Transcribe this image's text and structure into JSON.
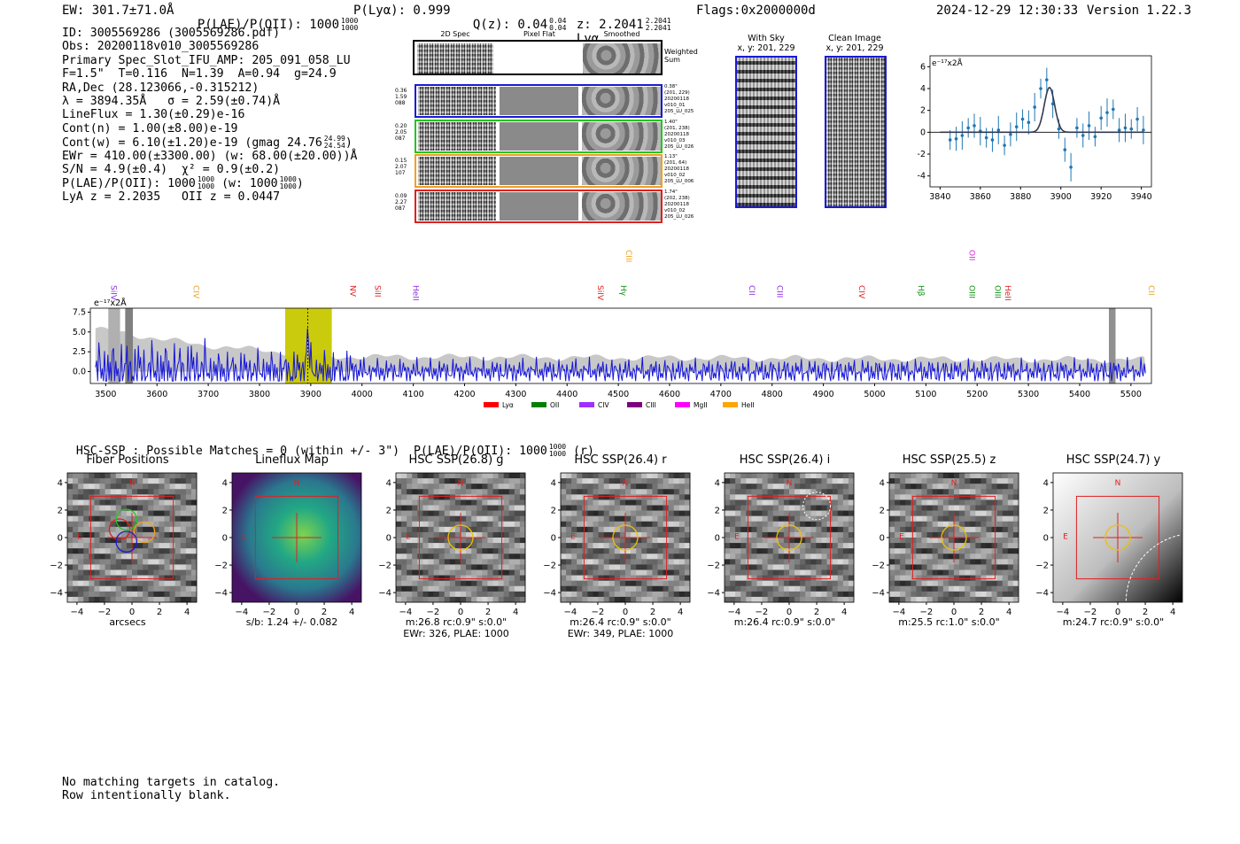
{
  "header": {
    "ew": "EW: 301.7±71.0Å",
    "plae_label": "P(LAE)/P(OII): 1000",
    "plae_hi": "1000",
    "plae_lo": "1000",
    "plya": "P(Lyα): 0.999",
    "qz_label": "Q(z): 0.04",
    "qz_hi": "0.04",
    "qz_lo": "0.04",
    "z_label": "z: 2.2041",
    "z_hi": "2.2041",
    "z_lo": "2.2041",
    "line": "Lyα",
    "flags": "Flags:0x2000000d",
    "datetime": "2024-12-29 12:30:33",
    "version": "Version 1.22.3"
  },
  "info": {
    "id": "ID: 3005569286 (3005569286.pdf)",
    "obs": "Obs: 20200118v010_3005569286",
    "primary": "Primary Spec_Slot_IFU_AMP: 205_091_058_LU",
    "params": "F=1.5\"  T=0.116  N=1.39  A=0.94  g=24.9",
    "radec": "RA,Dec (28.123066,-0.315212)",
    "lambda": "λ = 3894.35Å   σ = 2.59(±0.74)Å",
    "lineflux": "LineFlux = 1.30(±0.29)e-16",
    "cont_n": "Cont(n) = 1.00(±8.00)e-19",
    "cont_w": "Cont(w) = 6.10(±1.20)e-19 (gmag 24.76",
    "gmag_hi": "24.99",
    "gmag_lo": "24.54",
    "ewr": "EWr = 410.00(±3300.00) (w: 68.00(±20.00))Å",
    "sn": "S/N = 4.9(±0.4)  χ² = 0.9(±0.2)",
    "plae": "P(LAE)/P(OII): 1000",
    "plae_hi": "1000",
    "plae_lo": "1000",
    "plae_w": "(w: 1000",
    "plae_w_hi": "1000",
    "plae_w_lo": "1000",
    "lya_z": "LyA z = 2.2035   OII z = 0.0447"
  },
  "cutouts": {
    "col_titles": [
      "2D Spec",
      "Pixel Flat",
      "Smoothed"
    ],
    "weighted_sum": "Weighted Sum",
    "rows": [
      {
        "left": [
          "0.36",
          "1.59",
          "088"
        ],
        "right": [
          "0.38\"",
          "(201, 229)",
          "20200118",
          "v010_01",
          "205_LU_025"
        ],
        "color": "#1a1ad6"
      },
      {
        "left": [
          "0.20",
          "2.05",
          "087"
        ],
        "right": [
          "1.40\"",
          "(201, 238)",
          "20200118",
          "v010_03",
          "205_LU_026"
        ],
        "color": "#22c522"
      },
      {
        "left": [
          "0.15",
          "2.07",
          "107"
        ],
        "right": [
          "1.13\"",
          "(201, 64)",
          "20200118",
          "v010_02",
          "205_LU_006"
        ],
        "color": "#f0a020"
      },
      {
        "left": [
          "0.09",
          "2.27",
          "087"
        ],
        "right": [
          "1.74\"",
          "(202, 238)",
          "20200118",
          "v010_02",
          "205_LU_026"
        ],
        "color": "#e02020"
      }
    ],
    "with_sky": "With Sky",
    "with_sky_xy": "x, y: 201, 229",
    "clean": "Clean Image",
    "clean_xy": "x, y: 201, 229"
  },
  "zoom_chart": {
    "unit": "e⁻¹⁷x2Å",
    "x_ticks": [
      "3840",
      "3860",
      "3880",
      "3900",
      "3920",
      "3940"
    ],
    "y_ticks": [
      "6",
      "4",
      "2",
      "0",
      "-2",
      "-4"
    ]
  },
  "chart_data": [
    {
      "type": "line",
      "title": "",
      "ylabel": "e⁻¹⁷x2Å",
      "x": [
        3845,
        3848,
        3851,
        3854,
        3857,
        3860,
        3863,
        3866,
        3869,
        3872,
        3875,
        3878,
        3881,
        3884,
        3887,
        3890,
        3893,
        3896,
        3899,
        3902,
        3905,
        3908,
        3911,
        3914,
        3917,
        3920,
        3923,
        3926,
        3929,
        3932,
        3935,
        3938,
        3941
      ],
      "series": [
        {
          "name": "data",
          "values": [
            -0.7,
            -0.6,
            -0.3,
            0.4,
            0.6,
            0.1,
            -0.5,
            -0.7,
            0.2,
            -1.2,
            -0.2,
            0.5,
            1.2,
            0.9,
            2.3,
            4.0,
            4.8,
            2.6,
            0.3,
            -1.6,
            -3.2,
            0.4,
            -0.3,
            0.6,
            -0.4,
            1.3,
            1.8,
            2.1,
            0.2,
            0.4,
            0.3,
            1.2,
            0.2
          ]
        },
        {
          "name": "fit",
          "values": [
            0,
            0,
            0,
            0,
            0,
            0,
            0,
            0,
            0,
            0,
            0,
            0,
            0,
            0.05,
            0.6,
            2.6,
            4.0,
            2.5,
            0.5,
            0.05,
            0,
            0,
            0,
            0,
            0,
            0,
            0,
            0,
            0,
            0,
            0,
            0,
            0
          ]
        }
      ],
      "xlim": [
        3835,
        3945
      ],
      "ylim": [
        -5,
        7
      ]
    },
    {
      "type": "line",
      "title": "",
      "ylabel": "e⁻¹⁷x2Å",
      "categories": [
        "3500",
        "3600",
        "3700",
        "3800",
        "3900",
        "4000",
        "4100",
        "4200",
        "4300",
        "4400",
        "4500",
        "4600",
        "4700",
        "4800",
        "4900",
        "5000",
        "5100",
        "5200",
        "5300",
        "5400",
        "5500"
      ],
      "y_ticks": [
        "7.5",
        "5.0",
        "2.5",
        "0.0"
      ],
      "xlim": [
        3470,
        5540
      ],
      "ylim": [
        -1.5,
        8
      ]
    }
  ],
  "lines": [
    {
      "label": "SiIV",
      "color": "#8a2be2",
      "wl": 3505,
      "row": 0
    },
    {
      "label": "CIV",
      "color": "#f0a020",
      "wl": 3666,
      "row": 0
    },
    {
      "label": "NV",
      "color": "#e02020",
      "wl": 3972,
      "row": 0
    },
    {
      "label": "SiII",
      "color": "#e02020",
      "wl": 4020,
      "row": 0
    },
    {
      "label": "HeII",
      "color": "#8a2be2",
      "wl": 4095,
      "row": 0
    },
    {
      "label": "SiIV",
      "color": "#e02020",
      "wl": 4455,
      "row": 0
    },
    {
      "label": "CIII",
      "color": "#f0a020",
      "wl": 4510,
      "row": 1
    },
    {
      "label": "Hγ",
      "color": "#109010",
      "wl": 4500,
      "row": 0
    },
    {
      "label": "CII",
      "color": "#8a2be2",
      "wl": 4750,
      "row": 0
    },
    {
      "label": "CIII",
      "color": "#8a2be2",
      "wl": 4805,
      "row": 0
    },
    {
      "label": "CIV",
      "color": "#e02020",
      "wl": 4965,
      "row": 0
    },
    {
      "label": "Hβ",
      "color": "#109010",
      "wl": 5080,
      "row": 0
    },
    {
      "label": "OII",
      "color": "#e020e0",
      "wl": 5180,
      "row": 1
    },
    {
      "label": "OIII",
      "color": "#109010",
      "wl": 5180,
      "row": 0
    },
    {
      "label": "OIII",
      "color": "#109010",
      "wl": 5230,
      "row": 0
    },
    {
      "label": "HeII",
      "color": "#e02020",
      "wl": 5250,
      "row": 0
    },
    {
      "label": "CII",
      "color": "#f0a020",
      "wl": 5530,
      "row": 0
    }
  ],
  "legend": [
    {
      "label": "Lyα",
      "color": "#ff0000"
    },
    {
      "label": "OII",
      "color": "#008000"
    },
    {
      "label": "CIV",
      "color": "#9b30ff"
    },
    {
      "label": "CIII",
      "color": "#800080"
    },
    {
      "label": "MgII",
      "color": "#ff00ff"
    },
    {
      "label": "HeII",
      "color": "#ffa500"
    }
  ],
  "hsc": {
    "summary": "HSC-SSP : Possible Matches = 0 (within +/- 3\")  P(LAE)/P(OII): 1000",
    "summary_hi": "1000",
    "summary_lo": "1000",
    "summary_tail": "(r)",
    "ticks": [
      "−4",
      "−2",
      "0",
      "2",
      "4"
    ],
    "y_ticks": [
      "4",
      "2",
      "0",
      "−2",
      "−4"
    ],
    "north": "N",
    "east": "E",
    "panels": [
      {
        "title": "Fiber Positions",
        "cap1": "arcsecs",
        "cap2": "",
        "kind": "fiber"
      },
      {
        "title": "Lineflux Map",
        "cap1": "s/b: 1.24 +/- 0.082",
        "cap2": "",
        "kind": "flux"
      },
      {
        "title": "HSC SSP(26.8) g",
        "cap1": "m:26.8 rc:0.9\"  s:0.0\"",
        "cap2": "EWr: 326, PLAE: 1000",
        "kind": "noise"
      },
      {
        "title": "HSC SSP(26.4) r",
        "cap1": "m:26.4 rc:0.9\"  s:0.0\"",
        "cap2": "EWr: 349, PLAE: 1000",
        "kind": "noise"
      },
      {
        "title": "HSC SSP(26.4) i",
        "cap1": "m:26.4 rc:0.9\"  s:0.0\"",
        "cap2": "",
        "kind": "noise-i"
      },
      {
        "title": "HSC SSP(25.5) z",
        "cap1": "m:25.5 rc:1.0\"  s:0.0\"",
        "cap2": "",
        "kind": "noise"
      },
      {
        "title": "HSC SSP(24.7) y",
        "cap1": "m:24.7 rc:0.9\"  s:0.0\"",
        "cap2": "",
        "kind": "grad"
      }
    ]
  },
  "footer": {
    "line1": "No matching targets in catalog.",
    "line2": "Row intentionally blank."
  }
}
